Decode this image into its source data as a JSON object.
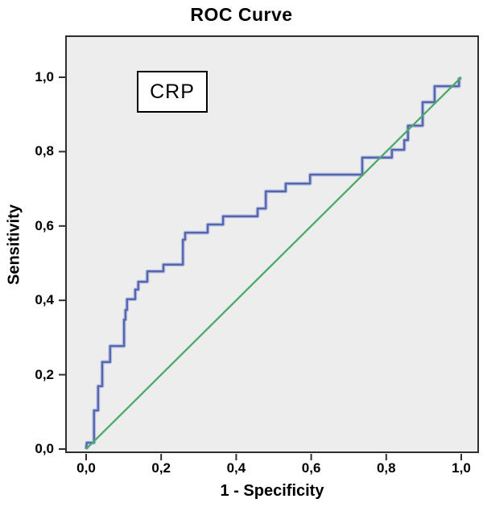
{
  "figure": {
    "title": "ROC Curve",
    "annotation_box_label": "CRP"
  },
  "chart_data": {
    "type": "line",
    "subtype": "roc-step-curve",
    "title": "ROC Curve",
    "xlabel": "1 - Specificity",
    "ylabel": "Sensitivity",
    "xlim": [
      0.0,
      1.0
    ],
    "ylim": [
      0.0,
      1.0
    ],
    "grid": false,
    "legend_position": "none",
    "decimal_separator": ",",
    "panel_color": "#ededed",
    "frame_color": "#2e2e2e",
    "annotation": {
      "text": "CRP"
    },
    "x_ticks": {
      "values": [
        0.0,
        0.2,
        0.4,
        0.6,
        0.8,
        1.0
      ],
      "labels": [
        "0,0",
        "0,2",
        "0,4",
        "0,6",
        "0,8",
        "1,0"
      ]
    },
    "y_ticks": {
      "values": [
        0.0,
        0.2,
        0.4,
        0.6,
        0.8,
        1.0
      ],
      "labels": [
        "0,0",
        "0,2",
        "0,4",
        "0,6",
        "0,8",
        "1,0"
      ]
    },
    "series": [
      {
        "name": "CRP",
        "role": "roc-curve",
        "color": "#5565ae",
        "halo_color": "#b2bcdf",
        "width": 2.3,
        "points": [
          [
            0.0,
            0.0
          ],
          [
            0.002,
            0.017
          ],
          [
            0.021,
            0.017
          ],
          [
            0.021,
            0.104
          ],
          [
            0.032,
            0.104
          ],
          [
            0.032,
            0.169
          ],
          [
            0.043,
            0.169
          ],
          [
            0.043,
            0.234
          ],
          [
            0.064,
            0.234
          ],
          [
            0.064,
            0.277
          ],
          [
            0.101,
            0.277
          ],
          [
            0.101,
            0.348
          ],
          [
            0.105,
            0.348
          ],
          [
            0.105,
            0.374
          ],
          [
            0.109,
            0.374
          ],
          [
            0.109,
            0.403
          ],
          [
            0.131,
            0.403
          ],
          [
            0.131,
            0.429
          ],
          [
            0.139,
            0.429
          ],
          [
            0.139,
            0.45
          ],
          [
            0.163,
            0.45
          ],
          [
            0.163,
            0.478
          ],
          [
            0.206,
            0.478
          ],
          [
            0.206,
            0.496
          ],
          [
            0.258,
            0.496
          ],
          [
            0.258,
            0.563
          ],
          [
            0.264,
            0.563
          ],
          [
            0.264,
            0.582
          ],
          [
            0.324,
            0.582
          ],
          [
            0.324,
            0.604
          ],
          [
            0.365,
            0.604
          ],
          [
            0.365,
            0.626
          ],
          [
            0.457,
            0.626
          ],
          [
            0.457,
            0.647
          ],
          [
            0.479,
            0.647
          ],
          [
            0.479,
            0.693
          ],
          [
            0.532,
            0.693
          ],
          [
            0.532,
            0.714
          ],
          [
            0.597,
            0.714
          ],
          [
            0.597,
            0.738
          ],
          [
            0.736,
            0.738
          ],
          [
            0.736,
            0.784
          ],
          [
            0.815,
            0.784
          ],
          [
            0.815,
            0.805
          ],
          [
            0.848,
            0.805
          ],
          [
            0.848,
            0.831
          ],
          [
            0.858,
            0.831
          ],
          [
            0.858,
            0.87
          ],
          [
            0.897,
            0.87
          ],
          [
            0.897,
            0.933
          ],
          [
            0.929,
            0.933
          ],
          [
            0.929,
            0.976
          ],
          [
            0.994,
            0.976
          ],
          [
            0.994,
            0.996
          ],
          [
            1.0,
            0.998
          ]
        ]
      },
      {
        "name": "Reference line",
        "role": "reference-diagonal",
        "color": "#4aab68",
        "width": 2.3,
        "points": [
          [
            0.0,
            0.0
          ],
          [
            1.0,
            1.0
          ]
        ]
      }
    ]
  }
}
